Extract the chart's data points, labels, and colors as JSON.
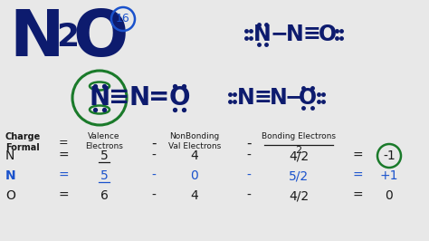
{
  "bg_color": "#e8e8e8",
  "dark_blue": "#0d1b6e",
  "mid_blue": "#1a52cc",
  "green": "#1a7a2a",
  "black": "#1a1a1a",
  "val_e": [
    "5",
    "5",
    "6"
  ],
  "nonbond_e": [
    "4",
    "0",
    "4"
  ],
  "bond_e": [
    "4/2",
    "5/2",
    "4/2"
  ],
  "results": [
    "-1",
    "+1",
    "0"
  ],
  "row_labels": [
    "N",
    "N",
    "O"
  ],
  "row_colors": [
    "black",
    "blue",
    "black"
  ]
}
